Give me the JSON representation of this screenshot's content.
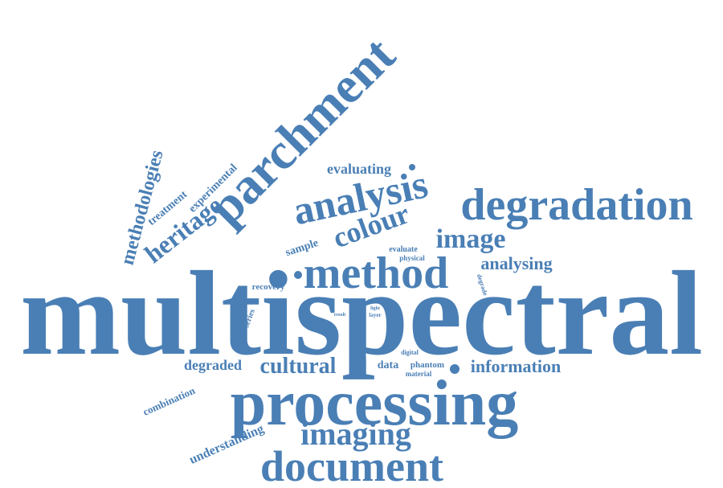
{
  "accent_color": "#4a7fb5",
  "words": [
    {
      "id": "multispectral",
      "text": "multispectral"
    },
    {
      "id": "processing",
      "text": "processing"
    },
    {
      "id": "parchment",
      "text": "parchment"
    },
    {
      "id": "degradation",
      "text": "degradation"
    },
    {
      "id": "document",
      "text": "document"
    },
    {
      "id": "method",
      "text": "method"
    },
    {
      "id": "analysis",
      "text": "analysis"
    },
    {
      "id": "imaging",
      "text": "imaging"
    },
    {
      "id": "image",
      "text": "image"
    },
    {
      "id": "colour",
      "text": "colour"
    },
    {
      "id": "heritage",
      "text": "heritage"
    },
    {
      "id": "methodologies",
      "text": "methodologies"
    },
    {
      "id": "cultural",
      "text": "cultural"
    },
    {
      "id": "information",
      "text": "information"
    },
    {
      "id": "analysing",
      "text": "analysing"
    },
    {
      "id": "evaluating",
      "text": "evaluating"
    },
    {
      "id": "degraded",
      "text": "degraded"
    },
    {
      "id": "understanding",
      "text": "understanding"
    },
    {
      "id": "experimental",
      "text": "experimental"
    },
    {
      "id": "treatment",
      "text": "treatment"
    },
    {
      "id": "combination",
      "text": "combination"
    },
    {
      "id": "sample",
      "text": "sample"
    },
    {
      "id": "data",
      "text": "data"
    },
    {
      "id": "series",
      "text": "series"
    },
    {
      "id": "recovery",
      "text": "recovery"
    },
    {
      "id": "evaluate",
      "text": "evaluate"
    },
    {
      "id": "physical",
      "text": "physical"
    },
    {
      "id": "phantom",
      "text": "phantom"
    },
    {
      "id": "material",
      "text": "material"
    },
    {
      "id": "digital",
      "text": "digital"
    },
    {
      "id": "degrade",
      "text": "degrade"
    },
    {
      "id": "result",
      "text": "result"
    },
    {
      "id": "light",
      "text": "light"
    },
    {
      "id": "layer",
      "text": "layer"
    }
  ]
}
